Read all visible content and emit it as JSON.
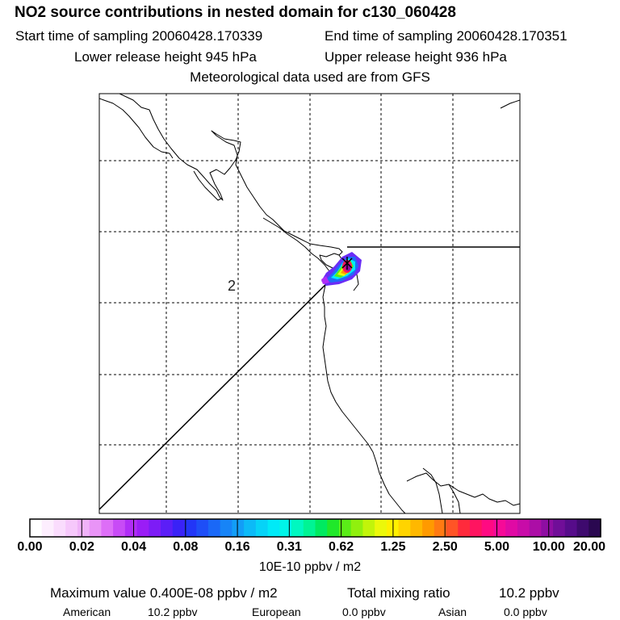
{
  "header": {
    "title": "NO2 source contributions in nested domain for c130_060428",
    "start_time": "Start time of sampling 20060428.170339",
    "end_time": "End time of sampling 20060428.170351",
    "lower_height": "Lower release height  945 hPa",
    "upper_height": "Upper release height  936 hPa",
    "met_data": "Meteorological data used are from GFS"
  },
  "map": {
    "region_label": "2",
    "colors": {
      "frame": "#000000",
      "grid": "#000000",
      "coast": "#000000",
      "marker": "#000000"
    }
  },
  "colorbar": {
    "colors": [
      "#ffffff",
      "#fdeefe",
      "#fadcfd",
      "#f6c8fb",
      "#f0b2f9",
      "#e994f7",
      "#dd6ef7",
      "#c84bf6",
      "#b02df6",
      "#9a1df6",
      "#7d1cf6",
      "#5b1ef7",
      "#3a22f7",
      "#2236f7",
      "#1e4ef7",
      "#1a68f7",
      "#1784f7",
      "#129ef7",
      "#0cbaf7",
      "#06d3f7",
      "#00eaf7",
      "#00f5e8",
      "#00f8c0",
      "#00f494",
      "#00ea60",
      "#20e82a",
      "#5aec18",
      "#90f00e",
      "#c2f40a",
      "#ecf80a",
      "#fff000",
      "#ffd400",
      "#ffb800",
      "#ff9a00",
      "#ff7a12",
      "#ff5426",
      "#ff2a3c",
      "#ff1460",
      "#ff0a82",
      "#f60a98",
      "#e00aa4",
      "#c80ca8",
      "#ac0ea6",
      "#8e0ea2",
      "#700e98",
      "#560c8a",
      "#3e0a6e",
      "#2a0850"
    ],
    "tick_labels": [
      "0.00",
      "0.02",
      "0.04",
      "0.08",
      "0.16",
      "0.31",
      "0.62",
      "1.25",
      "2.50",
      "5.00",
      "10.00",
      "20.00"
    ],
    "unit": "10E-10 ppbv / m2"
  },
  "footer": {
    "max_value": "Maximum value  0.400E-08 ppbv / m2",
    "total_label": "Total mixing ratio",
    "total_value": "10.2 ppbv",
    "american_label": "American",
    "american_value": "10.2 ppbv",
    "european_label": "European",
    "european_value": "0.0 ppbv",
    "asian_label": "Asian",
    "asian_value": "0.0 ppbv"
  }
}
